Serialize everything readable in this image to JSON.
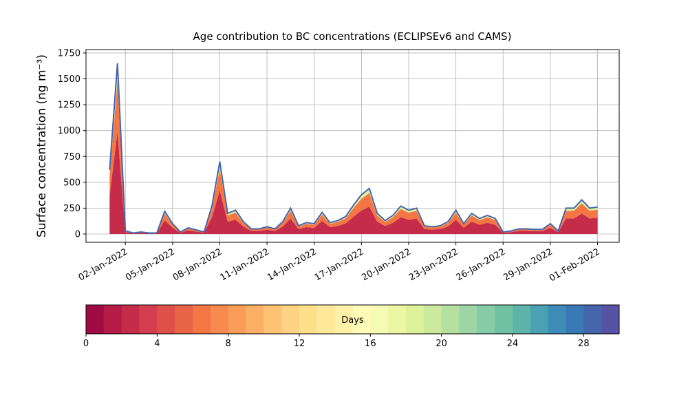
{
  "chart_data": {
    "type": "stacked_area",
    "title": "Age contribution to BC concentrations (ECLIPSEv6 and CAMS)",
    "ylabel": "Surface concentration (ng m⁻³)",
    "x": [
      "2022-01-01T00:00",
      "2022-01-01T12:00",
      "2022-01-02T00:00",
      "2022-01-02T12:00",
      "2022-01-03T00:00",
      "2022-01-03T12:00",
      "2022-01-04T00:00",
      "2022-01-04T12:00",
      "2022-01-05T00:00",
      "2022-01-05T12:00",
      "2022-01-06T00:00",
      "2022-01-06T12:00",
      "2022-01-07T00:00",
      "2022-01-07T12:00",
      "2022-01-08T00:00",
      "2022-01-08T12:00",
      "2022-01-09T00:00",
      "2022-01-09T12:00",
      "2022-01-10T00:00",
      "2022-01-10T12:00",
      "2022-01-11T00:00",
      "2022-01-11T12:00",
      "2022-01-12T00:00",
      "2022-01-12T12:00",
      "2022-01-13T00:00",
      "2022-01-13T12:00",
      "2022-01-14T00:00",
      "2022-01-14T12:00",
      "2022-01-15T00:00",
      "2022-01-15T12:00",
      "2022-01-16T00:00",
      "2022-01-16T12:00",
      "2022-01-17T00:00",
      "2022-01-17T12:00",
      "2022-01-18T00:00",
      "2022-01-18T12:00",
      "2022-01-19T00:00",
      "2022-01-19T12:00",
      "2022-01-20T00:00",
      "2022-01-20T12:00",
      "2022-01-21T00:00",
      "2022-01-21T12:00",
      "2022-01-22T00:00",
      "2022-01-22T12:00",
      "2022-01-23T00:00",
      "2022-01-23T12:00",
      "2022-01-24T00:00",
      "2022-01-24T12:00",
      "2022-01-25T00:00",
      "2022-01-25T12:00",
      "2022-01-26T00:00",
      "2022-01-26T12:00",
      "2022-01-27T00:00",
      "2022-01-27T12:00",
      "2022-01-28T00:00",
      "2022-01-28T12:00",
      "2022-01-29T00:00",
      "2022-01-29T12:00",
      "2022-01-30T00:00",
      "2022-01-30T12:00",
      "2022-01-31T00:00",
      "2022-01-31T12:00",
      "2022-02-01T00:00"
    ],
    "series": [
      {
        "color": "#c52c4a",
        "values": [
          372,
          990,
          18,
          6,
          12,
          6,
          6,
          132,
          60,
          12,
          36,
          24,
          12,
          162,
          420,
          120,
          138,
          72,
          30,
          30,
          42,
          30,
          72,
          150,
          48,
          66,
          60,
          126,
          66,
          78,
          102,
          168,
          228,
          264,
          120,
          78,
          108,
          162,
          138,
          150,
          48,
          42,
          48,
          72,
          138,
          60,
          120,
          90,
          108,
          90,
          12,
          18,
          30,
          30,
          27,
          27,
          60,
          18,
          150,
          150,
          198,
          150,
          156
        ]
      },
      {
        "color": "#f47645",
        "values": [
          186,
          495,
          9,
          3,
          6,
          3,
          3,
          66,
          30,
          6,
          18,
          12,
          6,
          81,
          210,
          60,
          69,
          36,
          15,
          15,
          21,
          15,
          36,
          75,
          24,
          33,
          30,
          63,
          33,
          39,
          51,
          84,
          114,
          132,
          60,
          39,
          54,
          81,
          69,
          75,
          24,
          21,
          24,
          36,
          69,
          30,
          60,
          45,
          54,
          45,
          6,
          9,
          15,
          15,
          13,
          13,
          30,
          9,
          75,
          75,
          99,
          75,
          78
        ]
      },
      {
        "color": "#def29a",
        "values": [
          62,
          165,
          3,
          1,
          2,
          1,
          1,
          22,
          10,
          2,
          6,
          4,
          2,
          27,
          70,
          20,
          23,
          12,
          5,
          5,
          7,
          5,
          12,
          25,
          8,
          11,
          10,
          21,
          11,
          13,
          17,
          28,
          38,
          44,
          20,
          13,
          18,
          27,
          23,
          25,
          8,
          7,
          8,
          12,
          23,
          10,
          20,
          15,
          18,
          15,
          2,
          3,
          5,
          5,
          5,
          5,
          10,
          3,
          25,
          25,
          33,
          25,
          26
        ]
      }
    ],
    "outline_color": "#4566ad",
    "xlim": [
      "2021-12-30T12:00",
      "2022-02-02T09:00"
    ],
    "xticks": [
      {
        "value": "2022-01-02T00:00",
        "label": "02-Jan-2022"
      },
      {
        "value": "2022-01-05T00:00",
        "label": "05-Jan-2022"
      },
      {
        "value": "2022-01-08T00:00",
        "label": "08-Jan-2022"
      },
      {
        "value": "2022-01-11T00:00",
        "label": "11-Jan-2022"
      },
      {
        "value": "2022-01-14T00:00",
        "label": "14-Jan-2022"
      },
      {
        "value": "2022-01-17T00:00",
        "label": "17-Jan-2022"
      },
      {
        "value": "2022-01-20T00:00",
        "label": "20-Jan-2022"
      },
      {
        "value": "2022-01-23T00:00",
        "label": "23-Jan-2022"
      },
      {
        "value": "2022-01-26T00:00",
        "label": "26-Jan-2022"
      },
      {
        "value": "2022-01-29T00:00",
        "label": "29-Jan-2022"
      },
      {
        "value": "2022-02-01T00:00",
        "label": "01-Feb-2022"
      }
    ],
    "ylim": [
      -80,
      1783
    ],
    "yticks": [
      0,
      250,
      500,
      750,
      1000,
      1250,
      1500,
      1750
    ],
    "grid": true,
    "colorbar": {
      "label": "Days",
      "lim": [
        0,
        30
      ],
      "ticks": [
        0,
        4,
        8,
        12,
        16,
        20,
        24,
        28
      ],
      "colors": [
        "#a00b44",
        "#b41b47",
        "#c52c4a",
        "#d53e4f",
        "#e0504a",
        "#e96346",
        "#f47645",
        "#f78a4f",
        "#fa9d59",
        "#fcb066",
        "#fdc274",
        "#fdd282",
        "#fee08b",
        "#fee99a",
        "#fff1a8",
        "#fffbb8",
        "#f5fbb2",
        "#ebf7a2",
        "#def29a",
        "#cbe99d",
        "#b5e0a0",
        "#9dd6a4",
        "#85cba6",
        "#71c1a5",
        "#5eb4a9",
        "#4ba0b1",
        "#3e8bb7",
        "#3878b5",
        "#4566ad",
        "#5753a4"
      ]
    }
  }
}
